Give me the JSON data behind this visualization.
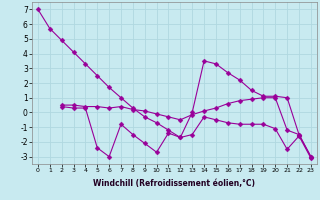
{
  "background_color": "#c8eaf0",
  "grid_color": "#b0d8e0",
  "line_color": "#990099",
  "xlabel": "Windchill (Refroidissement éolien,°C)",
  "xlim": [
    -0.5,
    23.5
  ],
  "ylim": [
    -3.5,
    7.5
  ],
  "yticks": [
    -3,
    -2,
    -1,
    0,
    1,
    2,
    3,
    4,
    5,
    6,
    7
  ],
  "xticks": [
    0,
    1,
    2,
    3,
    4,
    5,
    6,
    7,
    8,
    9,
    10,
    11,
    12,
    13,
    14,
    15,
    16,
    17,
    18,
    19,
    20,
    21,
    22,
    23
  ],
  "series": [
    {
      "x": [
        0,
        1,
        2,
        3,
        4,
        5,
        6,
        7,
        8,
        9,
        10,
        11,
        12,
        13,
        14,
        15,
        16,
        17,
        18,
        19,
        20,
        21,
        22,
        23
      ],
      "y": [
        7.0,
        5.7,
        4.9,
        4.1,
        3.3,
        2.5,
        1.7,
        1.0,
        0.3,
        -0.3,
        -0.7,
        -1.2,
        -1.7,
        0.0,
        3.5,
        3.3,
        2.7,
        2.2,
        1.5,
        1.1,
        1.1,
        1.0,
        -1.5,
        -3.0
      ]
    },
    {
      "x": [
        2,
        3,
        4,
        5,
        6,
        7,
        8,
        9,
        10,
        11,
        12,
        13,
        14,
        15,
        16,
        17,
        18,
        19,
        20,
        21,
        22,
        23
      ],
      "y": [
        0.5,
        0.5,
        0.4,
        0.4,
        0.3,
        0.4,
        0.2,
        0.1,
        -0.1,
        -0.3,
        -0.5,
        -0.15,
        0.1,
        0.3,
        0.6,
        0.8,
        0.9,
        1.0,
        1.0,
        -1.2,
        -1.5,
        -3.0
      ]
    },
    {
      "x": [
        2,
        3,
        4,
        5,
        6,
        7,
        8,
        9,
        10,
        11,
        12,
        13,
        14,
        15,
        16,
        17,
        18,
        19,
        20,
        21,
        22,
        23
      ],
      "y": [
        0.4,
        0.3,
        0.3,
        -2.4,
        -3.0,
        -0.8,
        -1.5,
        -2.1,
        -2.7,
        -1.4,
        -1.7,
        -1.5,
        -0.3,
        -0.5,
        -0.7,
        -0.8,
        -0.8,
        -0.8,
        -1.1,
        -2.5,
        -1.6,
        -3.1
      ]
    }
  ]
}
